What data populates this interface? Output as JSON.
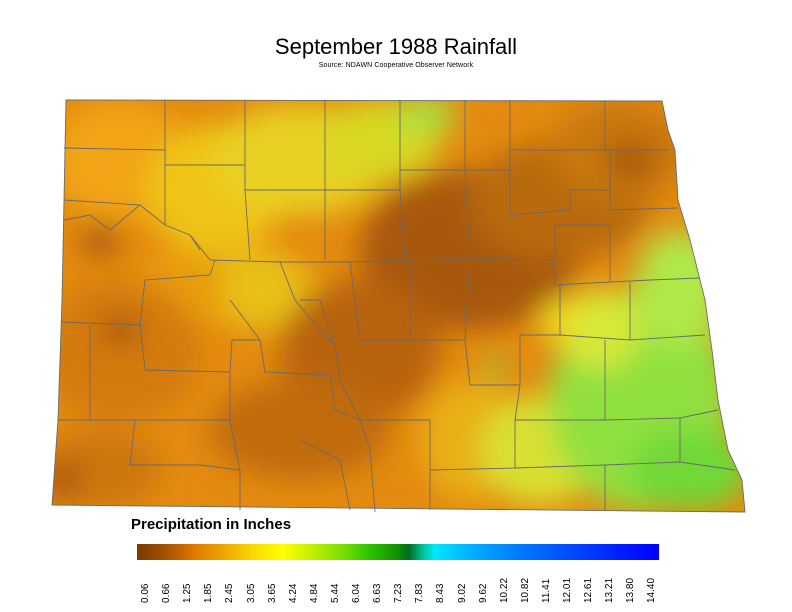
{
  "map": {
    "title": "September 1988 Rainfall",
    "subtitle": "Source: NDAWN Cooperative Observer Network",
    "legend": {
      "title": "Precipitation in Inches",
      "ticks": [
        "0.06",
        "0.66",
        "1.25",
        "1.85",
        "2.45",
        "3.05",
        "3.65",
        "4.24",
        "4.84",
        "5.44",
        "6.04",
        "6.63",
        "7.23",
        "7.83",
        "8.43",
        "9.02",
        "9.62",
        "10.22",
        "10.82",
        "11.41",
        "12.01",
        "12.61",
        "13.21",
        "13.80",
        "14.40"
      ]
    },
    "colors": {
      "lowest": "#7a3a00",
      "low": "#e07800",
      "mid": "#ffff00",
      "green": "#30c800",
      "high": "#00e8ff",
      "highest": "#0000ff"
    }
  }
}
